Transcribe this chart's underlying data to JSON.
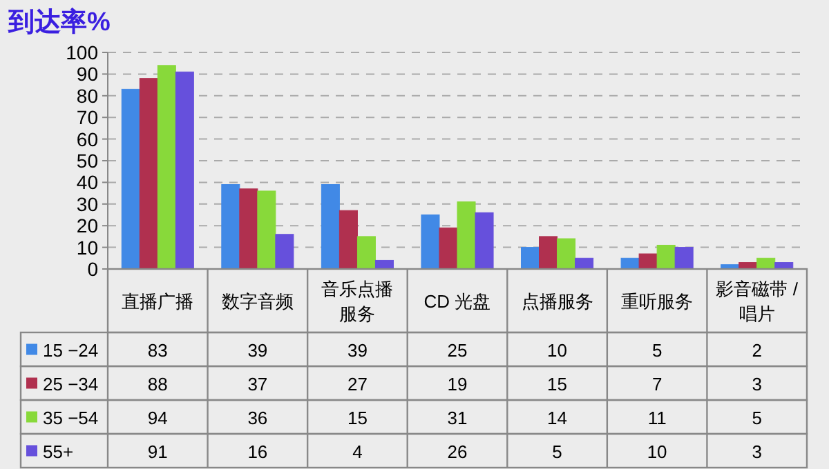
{
  "chart_data": {
    "type": "bar",
    "title": "到达率%",
    "categories": [
      "直播广播",
      "数字音频",
      "音乐点播服务",
      "CD 光盘",
      "点播服务",
      "重听服务",
      "影音磁带 / 唱片"
    ],
    "series": [
      {
        "name": "15 −24",
        "color": "#4189e6",
        "values": [
          83,
          39,
          39,
          25,
          10,
          5,
          2
        ]
      },
      {
        "name": "25 −34",
        "color": "#b0304f",
        "values": [
          88,
          37,
          27,
          19,
          15,
          7,
          3
        ]
      },
      {
        "name": "35 −54",
        "color": "#88d93a",
        "values": [
          94,
          36,
          15,
          31,
          14,
          11,
          5
        ]
      },
      {
        "name": "55+",
        "color": "#6650dc",
        "values": [
          91,
          16,
          4,
          26,
          5,
          10,
          3
        ]
      }
    ],
    "ylim": [
      0,
      100
    ],
    "yticks": [
      0,
      10,
      20,
      30,
      40,
      50,
      60,
      70,
      80,
      90,
      100
    ],
    "grid": "y",
    "legend": "bottom",
    "data_labels": true
  }
}
